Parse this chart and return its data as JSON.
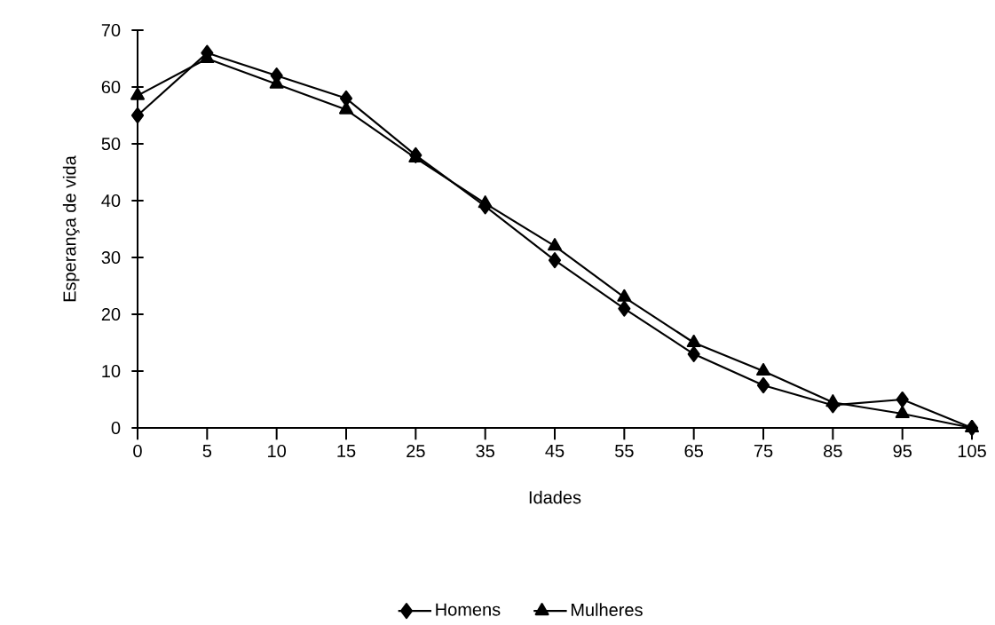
{
  "chart_data": {
    "type": "line",
    "xlabel": "Idades",
    "ylabel": "Esperança de vida",
    "categories": [
      "0",
      "5",
      "10",
      "15",
      "25",
      "35",
      "45",
      "55",
      "65",
      "75",
      "85",
      "95",
      "105"
    ],
    "ylim": [
      0,
      70
    ],
    "yticks": [
      0,
      10,
      20,
      30,
      40,
      50,
      60,
      70
    ],
    "legend": "bottom",
    "grid": false,
    "line_style": "solid",
    "series": [
      {
        "name": "Homens",
        "color": "#000000",
        "marker": "diamond",
        "values": [
          55,
          66,
          62,
          58,
          48,
          39,
          29.5,
          21,
          13,
          7.5,
          4,
          5,
          0
        ]
      },
      {
        "name": "Mulheres",
        "color": "#000000",
        "marker": "triangle",
        "values": [
          58.5,
          65,
          60.5,
          56,
          47.5,
          39.5,
          32,
          23,
          15,
          10,
          4.5,
          2.5,
          0
        ]
      }
    ]
  }
}
